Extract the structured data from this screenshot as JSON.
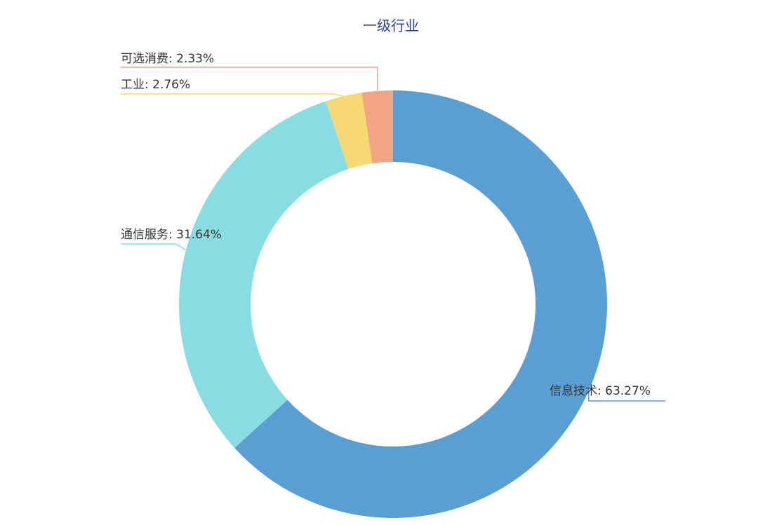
{
  "chart_data": {
    "type": "pie",
    "title": "一级行业",
    "values": [
      63.27,
      31.64,
      2.76,
      2.33
    ],
    "value_labels": [
      "信息技术: 63.27%",
      "通信服务: 31.64%",
      "工业: 2.76%",
      "可选消费: 2.33%"
    ],
    "colors": [
      "#5a9fd4",
      "#88dde2",
      "#f7d872",
      "#f2a485"
    ]
  }
}
